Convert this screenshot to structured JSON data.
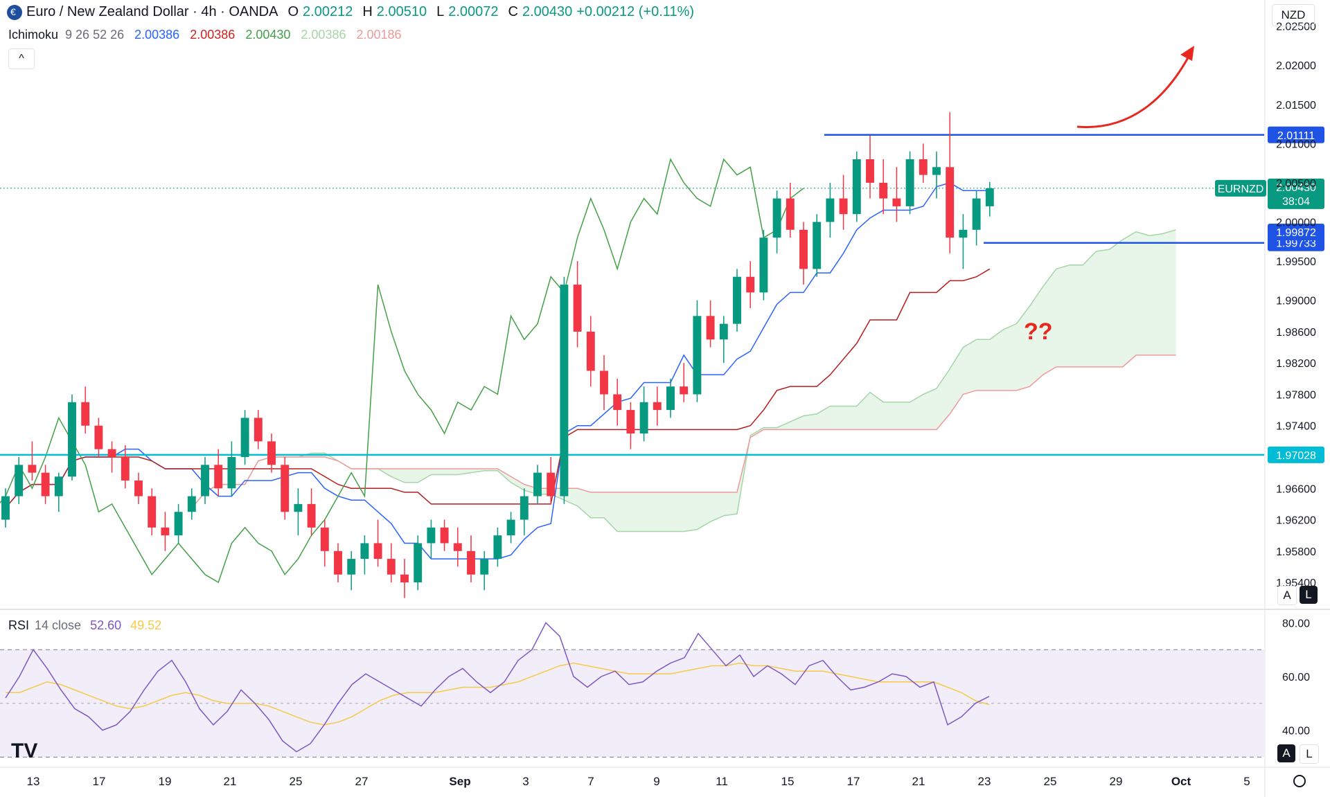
{
  "header": {
    "title": "Euro / New Zealand Dollar · 4h · OANDA",
    "open_label": "O",
    "open": "2.00212",
    "high_label": "H",
    "high": "2.00510",
    "low_label": "L",
    "low": "2.00072",
    "close_label": "C",
    "close": "2.00430",
    "change": "+0.00212 (+0.11%)"
  },
  "indicator": {
    "name": "Ichimoku",
    "params": "9 26 52 26",
    "values": [
      "2.00386",
      "2.00386",
      "2.00430",
      "2.00386",
      "2.00186"
    ],
    "colors": [
      "#2962ff",
      "#d0211c",
      "#43a047",
      "#a5d6a7",
      "#ef9a9a"
    ]
  },
  "collapse_icon": "^",
  "currency": "NZD",
  "scale_buttons": {
    "a": "A",
    "l": "L"
  },
  "rsi": {
    "name": "RSI",
    "params": "14 close",
    "value": "52.60",
    "ma_value": "49.52"
  },
  "annotation_text": "??",
  "watermark": "TV",
  "colors": {
    "up": "#089981",
    "down": "#f23645",
    "tenkan": "#2962ff",
    "kijun": "#b71c1c",
    "chikou": "#43a047",
    "spanA": "#a5d6a7",
    "spanB": "#ef9a9a",
    "level": "#1e53e5",
    "support": "#00bcd4",
    "rsi": "#7e57c2",
    "rsi_ma": "#f7c948",
    "arrow": "#e8281f"
  },
  "chart_data": {
    "type": "candlestick",
    "symbol": "EURNZD",
    "price_axis_ticks": [
      "2.02500",
      "2.02000",
      "2.01500",
      "2.01000",
      "2.00500",
      "2.00000",
      "1.99500",
      "1.99000",
      "1.98600",
      "1.98200",
      "1.97800",
      "1.97400",
      "1.96600",
      "1.96200",
      "1.95800",
      "1.95400"
    ],
    "x_ticks": [
      "13",
      "17",
      "19",
      "21",
      "25",
      "27",
      "Sep",
      "3",
      "7",
      "9",
      "11",
      "15",
      "17",
      "21",
      "23",
      "25",
      "29",
      "Oct",
      "5"
    ],
    "current_price": {
      "symbol": "EURNZD",
      "value": "2.00430",
      "countdown": "38:04"
    },
    "horizontal_levels": [
      {
        "label": "2.01111",
        "value": 2.01111,
        "color": "#1e53e5"
      },
      {
        "label": "1.99733",
        "value": 1.99733,
        "color": "#1e53e5"
      },
      {
        "label": "1.97028",
        "value": 1.97028,
        "color": "#00bcd4"
      }
    ],
    "price_labels": [
      {
        "label": "1.99872",
        "value": 1.99872,
        "color": "#1e53e5"
      }
    ],
    "rsi_axis_ticks": [
      "80.00",
      "60.00",
      "40.00"
    ],
    "rsi_band": [
      30,
      70
    ],
    "rsi_mid": 50,
    "y_range": [
      1.951,
      2.027
    ],
    "rsi_range": [
      27,
      85
    ],
    "ohlc": [
      [
        1.962,
        1.966,
        1.961,
        1.965
      ],
      [
        1.965,
        1.97,
        1.964,
        1.969
      ],
      [
        1.969,
        1.972,
        1.967,
        1.968
      ],
      [
        1.968,
        1.969,
        1.964,
        1.965
      ],
      [
        1.965,
        1.968,
        1.963,
        1.9675
      ],
      [
        1.9675,
        1.978,
        1.967,
        1.977
      ],
      [
        1.977,
        1.979,
        1.973,
        1.974
      ],
      [
        1.974,
        1.975,
        1.97,
        1.971
      ],
      [
        1.971,
        1.972,
        1.968,
        1.97
      ],
      [
        1.97,
        1.9715,
        1.966,
        1.967
      ],
      [
        1.967,
        1.968,
        1.964,
        1.965
      ],
      [
        1.965,
        1.966,
        1.96,
        1.961
      ],
      [
        1.961,
        1.963,
        1.958,
        1.96
      ],
      [
        1.96,
        1.964,
        1.959,
        1.963
      ],
      [
        1.963,
        1.966,
        1.962,
        1.965
      ],
      [
        1.965,
        1.97,
        1.964,
        1.969
      ],
      [
        1.969,
        1.971,
        1.965,
        1.966
      ],
      [
        1.966,
        1.972,
        1.965,
        1.97
      ],
      [
        1.97,
        1.976,
        1.969,
        1.975
      ],
      [
        1.975,
        1.976,
        1.971,
        1.972
      ],
      [
        1.972,
        1.973,
        1.968,
        1.969
      ],
      [
        1.969,
        1.97,
        1.962,
        1.963
      ],
      [
        1.963,
        1.966,
        1.96,
        1.964
      ],
      [
        1.964,
        1.966,
        1.96,
        1.961
      ],
      [
        1.961,
        1.962,
        1.956,
        1.958
      ],
      [
        1.958,
        1.959,
        1.954,
        1.955
      ],
      [
        1.955,
        1.958,
        1.953,
        1.957
      ],
      [
        1.957,
        1.96,
        1.955,
        1.959
      ],
      [
        1.959,
        1.962,
        1.956,
        1.957
      ],
      [
        1.957,
        1.959,
        1.954,
        1.955
      ],
      [
        1.955,
        1.957,
        1.952,
        1.954
      ],
      [
        1.954,
        1.96,
        1.953,
        1.959
      ],
      [
        1.959,
        1.962,
        1.957,
        1.961
      ],
      [
        1.961,
        1.962,
        1.958,
        1.959
      ],
      [
        1.959,
        1.961,
        1.956,
        1.958
      ],
      [
        1.958,
        1.96,
        1.954,
        1.955
      ],
      [
        1.955,
        1.958,
        1.953,
        1.957
      ],
      [
        1.957,
        1.961,
        1.956,
        1.96
      ],
      [
        1.96,
        1.963,
        1.959,
        1.962
      ],
      [
        1.962,
        1.966,
        1.96,
        1.965
      ],
      [
        1.965,
        1.969,
        1.964,
        1.968
      ],
      [
        1.968,
        1.97,
        1.964,
        1.965
      ],
      [
        1.965,
        1.993,
        1.964,
        1.992
      ],
      [
        1.992,
        1.995,
        1.984,
        1.986
      ],
      [
        1.986,
        1.988,
        1.979,
        1.981
      ],
      [
        1.981,
        1.983,
        1.976,
        1.978
      ],
      [
        1.978,
        1.98,
        1.974,
        1.976
      ],
      [
        1.976,
        1.977,
        1.971,
        1.973
      ],
      [
        1.973,
        1.979,
        1.972,
        1.977
      ],
      [
        1.977,
        1.979,
        1.974,
        1.976
      ],
      [
        1.976,
        1.98,
        1.975,
        1.979
      ],
      [
        1.979,
        1.982,
        1.977,
        1.978
      ],
      [
        1.978,
        1.99,
        1.977,
        1.988
      ],
      [
        1.988,
        1.99,
        1.984,
        1.985
      ],
      [
        1.985,
        1.988,
        1.982,
        1.987
      ],
      [
        1.987,
        1.994,
        1.986,
        1.993
      ],
      [
        1.993,
        1.995,
        1.989,
        1.991
      ],
      [
        1.991,
        1.999,
        1.99,
        1.998
      ],
      [
        1.998,
        2.004,
        1.996,
        2.003
      ],
      [
        2.003,
        2.005,
        1.998,
        1.999
      ],
      [
        1.999,
        2.0,
        1.992,
        1.994
      ],
      [
        1.994,
        2.001,
        1.993,
        2.0
      ],
      [
        2.0,
        2.005,
        1.998,
        2.003
      ],
      [
        2.003,
        2.006,
        1.999,
        2.001
      ],
      [
        2.001,
        2.009,
        2.0,
        2.008
      ],
      [
        2.008,
        2.011,
        2.003,
        2.005
      ],
      [
        2.005,
        2.008,
        2.001,
        2.003
      ],
      [
        2.003,
        2.007,
        2.0,
        2.002
      ],
      [
        2.002,
        2.009,
        2.001,
        2.008
      ],
      [
        2.008,
        2.01,
        2.005,
        2.006
      ],
      [
        2.006,
        2.009,
        2.003,
        2.007
      ],
      [
        2.007,
        2.014,
        1.996,
        1.998
      ],
      [
        1.998,
        2.001,
        1.994,
        1.999
      ],
      [
        1.999,
        2.004,
        1.997,
        2.003
      ],
      [
        2.002,
        2.0051,
        2.0007,
        2.0043
      ]
    ],
    "rsi_values": [
      52,
      60,
      70,
      63,
      55,
      48,
      45,
      40,
      42,
      47,
      55,
      62,
      66,
      58,
      48,
      42,
      47,
      55,
      50,
      44,
      36,
      32,
      35,
      42,
      50,
      57,
      61,
      58,
      55,
      52,
      49,
      55,
      60,
      63,
      58,
      54,
      58,
      66,
      70,
      80,
      75,
      60,
      56,
      60,
      62,
      57,
      58,
      62,
      65,
      67,
      76,
      70,
      64,
      68,
      60,
      64,
      61,
      57,
      64,
      66,
      60,
      55,
      56,
      58,
      61,
      60,
      56,
      58,
      42,
      45,
      50,
      52.6
    ],
    "rsi_ma_values": [
      54,
      54,
      56,
      58,
      57,
      55,
      53,
      51,
      49,
      48,
      49,
      51,
      53,
      54,
      53,
      51,
      50,
      50,
      50,
      49,
      47,
      45,
      43,
      42,
      43,
      45,
      48,
      51,
      53,
      54,
      54,
      54,
      55,
      56,
      56,
      56,
      57,
      58,
      60,
      62,
      64,
      65,
      64,
      63,
      62,
      61,
      61,
      61,
      61,
      62,
      63,
      64,
      64,
      65,
      64,
      64,
      63,
      62,
      62,
      62,
      61,
      60,
      59,
      58,
      58,
      58,
      58,
      58,
      56,
      54,
      51,
      49.52
    ]
  }
}
